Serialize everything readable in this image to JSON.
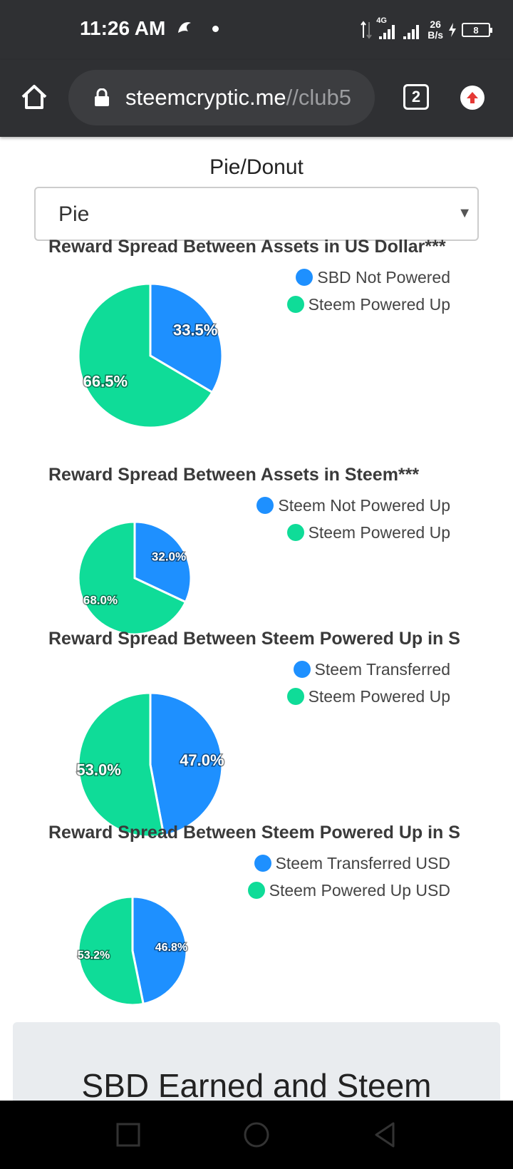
{
  "status_bar": {
    "time": "11:26 AM",
    "network": "4G",
    "speed_value": "26",
    "speed_unit": "B/s",
    "battery": "8"
  },
  "browser": {
    "url_main": "steemcryptic.me",
    "url_rest": "//club5",
    "tab_count": "2"
  },
  "selector": {
    "label": "Pie/Donut",
    "value": "Pie"
  },
  "colors": {
    "blue": "#1e90ff",
    "green": "#0fdc98"
  },
  "chart_data": [
    {
      "type": "pie",
      "title": "Reward Spread Between Assets in US Dollar***",
      "labels": [
        "SBD Not Powered",
        "Steem Powered Up"
      ],
      "values": [
        33.5,
        66.5
      ],
      "value_labels": [
        "33.5%",
        "66.5%"
      ],
      "legend": "top-right"
    },
    {
      "type": "pie",
      "title": "Reward Spread Between Assets in Steem***",
      "labels": [
        "Steem Not Powered Up",
        "Steem Powered Up"
      ],
      "values": [
        32.0,
        68.0
      ],
      "value_labels": [
        "32.0%",
        "68.0%"
      ],
      "legend": "top-right"
    },
    {
      "type": "pie",
      "title": "Reward Spread Between Steem Powered Up in S",
      "labels": [
        "Steem Transferred",
        "Steem Powered Up"
      ],
      "values": [
        47.0,
        53.0
      ],
      "value_labels": [
        "47.0%",
        "53.0%"
      ],
      "legend": "top-right"
    },
    {
      "type": "pie",
      "title": "Reward Spread Between Steem Powered Up in S",
      "labels": [
        "Steem Transferred USD",
        "Steem Powered Up USD"
      ],
      "values": [
        46.8,
        53.2
      ],
      "value_labels": [
        "46.8%",
        "53.2%"
      ],
      "legend": "top-right"
    }
  ],
  "card": {
    "title": "SBD Earned and Steem"
  }
}
